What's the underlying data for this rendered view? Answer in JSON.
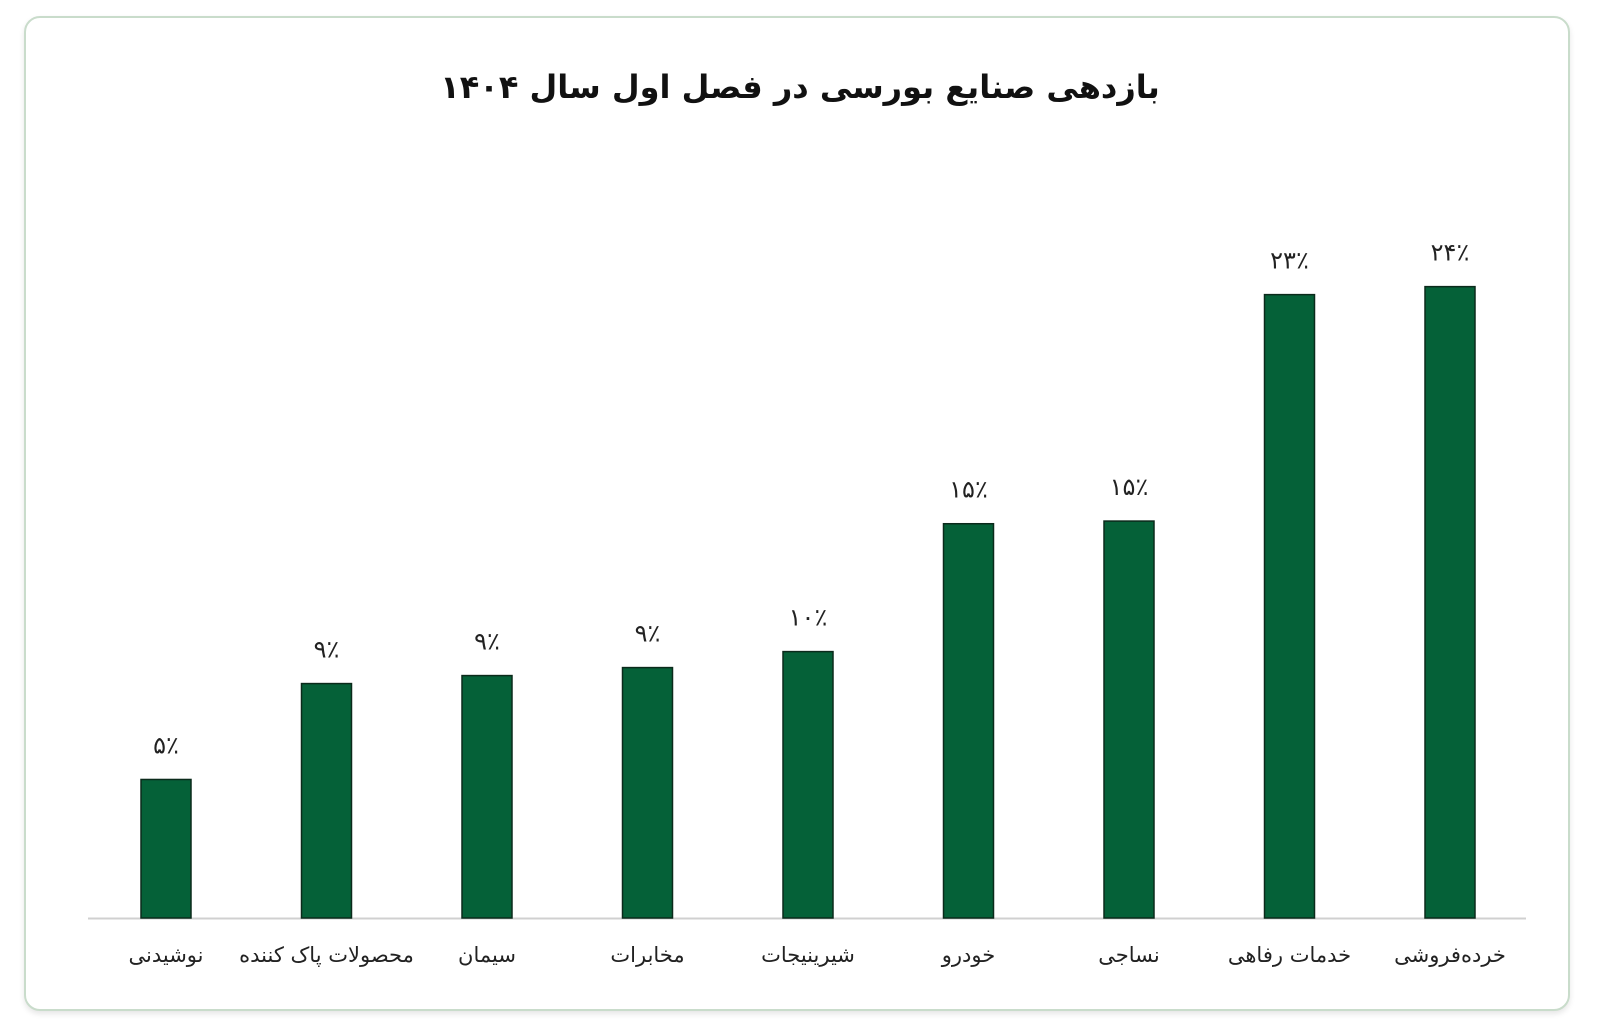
{
  "colors": {
    "bar": "#056138",
    "bar_stroke": "#0b2a1b",
    "axis": "#d0d0d0",
    "card_border": "#c9dccb"
  },
  "chart_data": {
    "type": "bar",
    "title": "بازدهی صنایع بورسی در فصل اول سال ۱۴۰۴",
    "xlabel": "",
    "ylabel": "",
    "ylim": [
      0,
      25
    ],
    "grid": false,
    "categories": [
      "نوشیدنی",
      "محصولات پاک کننده",
      "سیمان",
      "مخابرات",
      "شیرینیجات",
      "خودرو",
      "نساجی",
      "خدمات رفاهی",
      "خرده‌فروشی"
    ],
    "values": [
      5.2,
      8.8,
      9.1,
      9.4,
      10,
      14.8,
      14.9,
      23.4,
      23.7
    ],
    "value_labels": [
      "۵٪",
      "۹٪",
      "۹٪",
      "۹٪",
      "۱۰٪",
      "۱۵٪",
      "۱۵٪",
      "۲۳٪",
      "۲۴٪"
    ]
  }
}
